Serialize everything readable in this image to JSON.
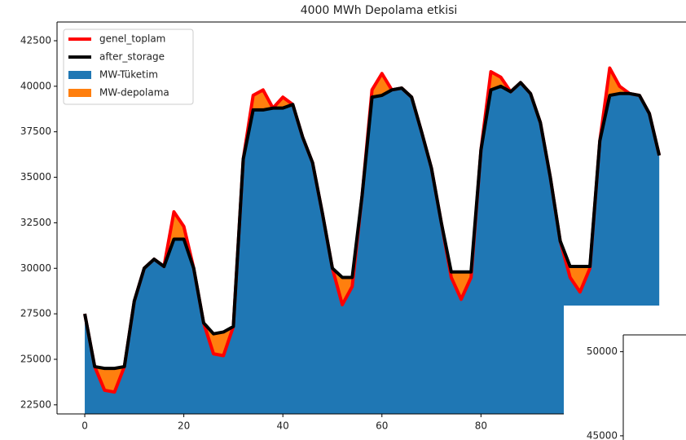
{
  "chart_data": [
    {
      "type": "area",
      "title": "4000 MWh Depolama etkisi",
      "x": [
        0,
        2,
        4,
        6,
        8,
        10,
        12,
        14,
        16,
        18,
        20,
        22,
        24,
        26,
        28,
        30,
        32,
        34,
        36,
        38,
        40,
        42,
        44,
        46,
        48,
        50,
        52,
        54,
        56,
        58,
        60,
        62,
        64,
        66,
        68,
        70,
        72,
        74,
        76,
        78,
        80,
        82,
        84,
        86,
        88,
        90,
        92,
        94,
        96,
        98,
        100,
        102,
        104,
        106,
        108,
        110,
        112,
        114,
        116
      ],
      "series": [
        {
          "name": "genel_toplam",
          "color": "#ff0000",
          "kind": "line",
          "values": [
            27500,
            24600,
            23300,
            23200,
            24600,
            28200,
            30000,
            30500,
            30100,
            33100,
            32300,
            30000,
            27000,
            25300,
            25200,
            26800,
            36000,
            39500,
            39800,
            38800,
            39400,
            39000,
            37200,
            35800,
            33000,
            30000,
            28000,
            29000,
            34000,
            39800,
            40700,
            39800,
            39900,
            39400,
            37500,
            35500,
            32500,
            29500,
            28300,
            29500,
            36500,
            40800,
            40500,
            39700,
            40200,
            39600,
            38000,
            35000,
            31500,
            29500,
            28700,
            30000,
            37000,
            41000,
            40000,
            39600,
            39500,
            38500,
            36200
          ]
        },
        {
          "name": "after_storage",
          "color": "#000000",
          "kind": "line",
          "values": [
            27500,
            24600,
            24500,
            24500,
            24600,
            28200,
            30000,
            30500,
            30100,
            31600,
            31600,
            30000,
            27000,
            26400,
            26500,
            26800,
            36000,
            38700,
            38700,
            38800,
            38800,
            39000,
            37200,
            35800,
            33000,
            30000,
            29500,
            29500,
            34000,
            39400,
            39500,
            39800,
            39900,
            39400,
            37500,
            35500,
            32500,
            29800,
            29800,
            29800,
            36500,
            39800,
            40000,
            39700,
            40200,
            39600,
            38000,
            35000,
            31500,
            30100,
            30100,
            30100,
            37000,
            39500,
            39600,
            39600,
            39500,
            38500,
            36200
          ]
        },
        {
          "name": "MW-Tüketim",
          "color": "#1f77b4",
          "kind": "area",
          "values": [
            27500,
            24600,
            23300,
            23200,
            24600,
            28200,
            30000,
            30500,
            30100,
            31600,
            31600,
            30000,
            27000,
            25300,
            25200,
            26800,
            36000,
            38700,
            38700,
            38800,
            38800,
            39000,
            37200,
            35800,
            33000,
            30000,
            28000,
            29000,
            34000,
            39400,
            39500,
            39800,
            39900,
            39400,
            37500,
            35500,
            32500,
            29500,
            28300,
            29500,
            36500,
            39800,
            40000,
            39700,
            40200,
            39600,
            38000,
            35000,
            31500,
            29500,
            28700,
            30000,
            37000,
            39500,
            39600,
            39600,
            39500,
            38500,
            36200
          ]
        },
        {
          "name": "MW-depolama",
          "color": "#ff7f0e",
          "kind": "area",
          "values": [
            0,
            0,
            1200,
            1300,
            0,
            0,
            0,
            0,
            0,
            1500,
            700,
            0,
            0,
            1100,
            1300,
            0,
            0,
            800,
            1100,
            0,
            600,
            0,
            0,
            0,
            0,
            0,
            1500,
            500,
            0,
            400,
            1200,
            0,
            0,
            0,
            0,
            0,
            0,
            300,
            1500,
            300,
            0,
            1000,
            500,
            0,
            0,
            0,
            0,
            0,
            0,
            600,
            1400,
            100,
            0,
            1500,
            400,
            0,
            0,
            0,
            0
          ]
        }
      ],
      "xlim": [
        -5.6,
        121.4
      ],
      "ylim": [
        22000,
        43530
      ],
      "xticks": [
        0,
        20,
        40,
        60,
        80
      ],
      "yticks": [
        22500,
        25000,
        27500,
        30000,
        32500,
        35000,
        37500,
        40000,
        42500
      ],
      "legend": "upper left"
    },
    {
      "type": "line",
      "ylim": [
        44800,
        51000
      ],
      "yticks": [
        45000,
        50000
      ]
    }
  ]
}
